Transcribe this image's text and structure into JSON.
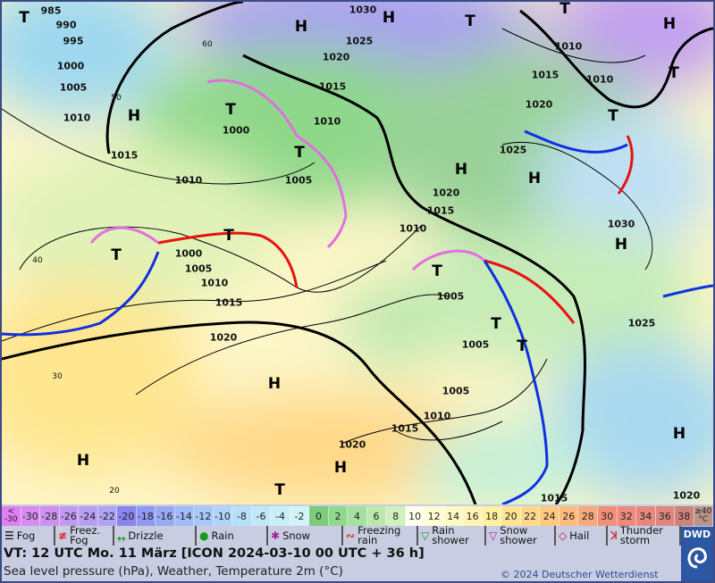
{
  "map": {
    "pressure_labels": [
      "985",
      "990",
      "995",
      "1000",
      "1005",
      "1010",
      "1015",
      "1010",
      "1030",
      "1025",
      "1020",
      "1015",
      "1010",
      "1000",
      "1005",
      "1010",
      "1015",
      "1010",
      "1020",
      "1025",
      "1020",
      "1015",
      "1010",
      "1030",
      "1000",
      "1005",
      "1010",
      "1015",
      "1020",
      "1005",
      "1005",
      "1025",
      "1005",
      "1010",
      "1015",
      "1020",
      "1015",
      "1020"
    ],
    "high_label": "H",
    "low_label": "T",
    "temperature_labels": [
      "60",
      "50",
      "40",
      "30",
      "20"
    ]
  },
  "color_scale": {
    "labels": [
      "<\n-30",
      "-30",
      "-28",
      "-26",
      "-24",
      "-22",
      "-20",
      "-18",
      "-16",
      "-14",
      "-12",
      "-10",
      "-8",
      "-6",
      "-4",
      "-2",
      "0",
      "2",
      "4",
      "6",
      "8",
      "10",
      "12",
      "14",
      "16",
      "18",
      "20",
      "22",
      "24",
      "26",
      "28",
      "30",
      "32",
      "34",
      "36",
      "38",
      "≥40\n°C"
    ],
    "colors": [
      "#e07ff0",
      "#d88cf0",
      "#cc92f0",
      "#c298f2",
      "#b89ef2",
      "#aea4f2",
      "#8a84ee",
      "#8f98f2",
      "#98aaf4",
      "#a2baf6",
      "#a8c8f8",
      "#b0d4f8",
      "#b8dff8",
      "#c0e8f8",
      "#c8eff8",
      "#d0f4fa",
      "#7ccc7c",
      "#90d88c",
      "#a6e0a0",
      "#bce8ac",
      "#d0f0bc",
      "#ffffee",
      "#ffffd4",
      "#fffac4",
      "#fff4b4",
      "#fff0a0",
      "#ffe494",
      "#ffd88a",
      "#ffca80",
      "#ffbc7c",
      "#f8aa7c",
      "#f09078",
      "#ec8a7e",
      "#e48880",
      "#dc8880",
      "#cc8478",
      "#b8948c"
    ]
  },
  "legend": [
    {
      "icon": "fog-icon",
      "label": "Fog"
    },
    {
      "icon": "freezing-fog-icon",
      "label": "Freez.\nFog"
    },
    {
      "icon": "drizzle-icon",
      "label": "Drizzle"
    },
    {
      "icon": "rain-icon",
      "label": "Rain"
    },
    {
      "icon": "snow-icon",
      "label": "Snow"
    },
    {
      "icon": "freezing-rain-icon",
      "label": "Freezing\nrain"
    },
    {
      "icon": "rain-shower-icon",
      "label": "Rain\nshower"
    },
    {
      "icon": "snow-shower-icon",
      "label": "Snow\nshower"
    },
    {
      "icon": "hail-icon",
      "label": "Hail"
    },
    {
      "icon": "thunderstorm-icon",
      "label": "Thunder\nstorm"
    }
  ],
  "valid_time": "VT: 12 UTC Mo.  11 März [ICON 2024-03-10  00 UTC + 36 h]",
  "subtitle": "Sea level pressure (hPa), Weather, Temperature 2m (°C)",
  "copyright": "© 2024 Deutscher Wetterdienst",
  "logo": "DWD",
  "colors": {
    "cold_front": "#1030e0",
    "warm_front": "#e81010",
    "occlusion": "#e070e0",
    "isobar": "#000000"
  }
}
